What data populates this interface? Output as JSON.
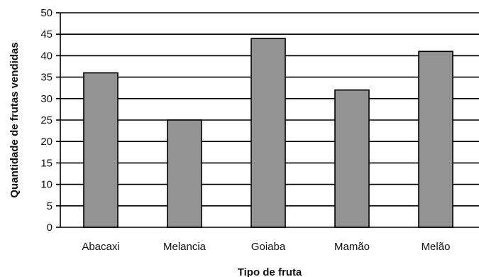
{
  "chart_data": {
    "type": "bar",
    "title": "",
    "xlabel": "Tipo de fruta",
    "ylabel": "Quantidade de frutas vendidas",
    "categories": [
      "Abacaxi",
      "Melancia",
      "Goiaba",
      "Mamão",
      "Melão"
    ],
    "values": [
      36,
      25,
      44,
      32,
      41
    ],
    "ylim": [
      0,
      50
    ],
    "yticks": [
      0,
      5,
      10,
      15,
      20,
      25,
      30,
      35,
      40,
      45,
      50
    ],
    "grid": true,
    "bar_color": "#939393",
    "bar_edge_color": "#000000"
  }
}
